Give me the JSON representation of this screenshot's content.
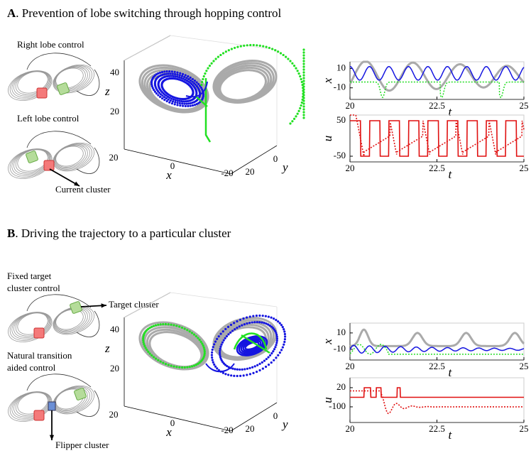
{
  "panels": [
    {
      "label": "A",
      "title": ". Prevention of lobe switching through hopping control",
      "schematic_labels": [
        "Right lobe control",
        "Left lobe control",
        "Current cluster"
      ],
      "plot3d": {
        "xlabel": "x",
        "ylabel": "y",
        "zlabel": "z",
        "xticks": [
          20,
          0,
          -20
        ],
        "yticks": [
          0,
          20
        ],
        "zticks": [
          40,
          20
        ]
      },
      "xplot": {
        "ylabel": "x",
        "xlabel": "t",
        "xlim": [
          20,
          25
        ],
        "ylim": [
          -22,
          17
        ],
        "xticks": [
          20,
          22.5,
          25
        ],
        "yticks": [
          10,
          -10
        ]
      },
      "uplot": {
        "ylabel": "u",
        "xlabel": "t",
        "xlim": [
          20,
          25
        ],
        "ylim": [
          -66,
          66
        ],
        "xticks": [
          20,
          22.5,
          25
        ],
        "yticks": [
          50,
          -50
        ]
      }
    },
    {
      "label": "B",
      "title": ". Driving the trajectory to a particular cluster",
      "schematic_labels": [
        "Fixed target",
        "cluster control",
        "Target cluster",
        "Natural transition",
        "aided control",
        "Flipper cluster"
      ],
      "plot3d": {
        "xlabel": "x",
        "ylabel": "y",
        "zlabel": "z",
        "xticks": [
          20,
          0,
          -20
        ],
        "yticks": [
          0,
          20
        ],
        "zticks": [
          40,
          20
        ]
      },
      "xplot": {
        "ylabel": "x",
        "xlabel": "t",
        "xlim": [
          20,
          25
        ],
        "ylim": [
          -23,
          22
        ],
        "xticks": [
          20,
          22.5,
          25
        ],
        "yticks": [
          10,
          -10
        ]
      },
      "uplot": {
        "ylabel": "u",
        "xlabel": "t",
        "xlim": [
          20,
          25
        ],
        "ylim": [
          -198,
          82
        ],
        "xticks": [
          20,
          22.5,
          25
        ],
        "yticks": [
          20,
          -100
        ]
      }
    }
  ]
}
